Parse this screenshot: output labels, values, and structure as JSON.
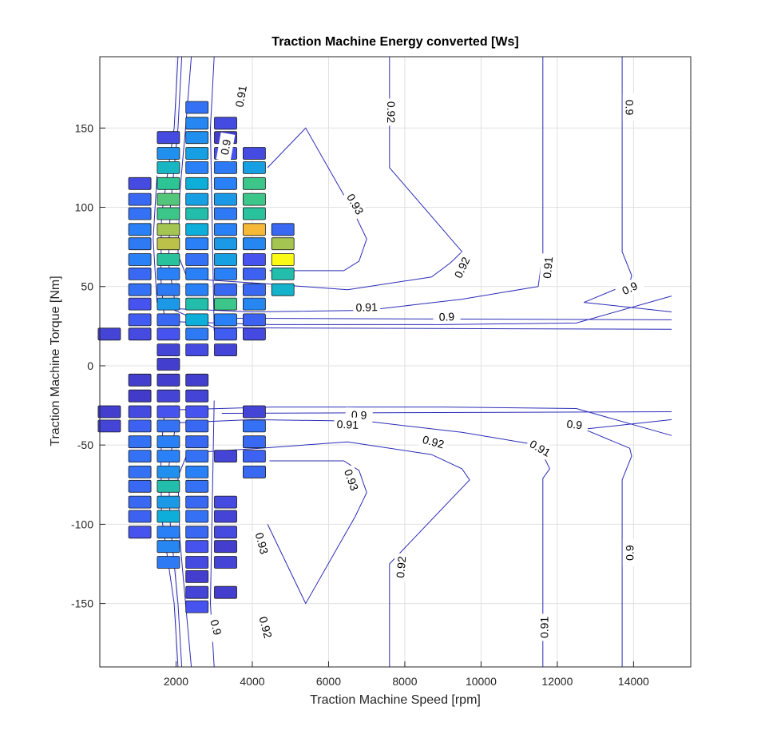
{
  "chart_data": {
    "type": "heatmap",
    "title": "Traction Machine Energy converted [Ws]",
    "xlabel": "Traction Machine Speed [rpm]",
    "ylabel": "Traction Machine Torque [Nm]",
    "xlim": [
      0,
      15500
    ],
    "ylim": [
      -190,
      195
    ],
    "xticks": [
      2000,
      4000,
      6000,
      8000,
      10000,
      12000,
      14000
    ],
    "yticks": [
      -150,
      -100,
      -50,
      0,
      50,
      100,
      150
    ],
    "grid": true,
    "colormap": "parula",
    "colors": {
      "contour": "#2b2bb8",
      "axis": "#262626",
      "grid": "#e1e1e1"
    },
    "cells": [
      {
        "x": 250,
        "y": 20,
        "c": 0.1
      },
      {
        "x": 250,
        "y": -29,
        "c": 0.08
      },
      {
        "x": 250,
        "y": -38,
        "c": 0.1
      },
      {
        "x": 1050,
        "y": 115,
        "c": 0.12
      },
      {
        "x": 1050,
        "y": 105,
        "c": 0.22
      },
      {
        "x": 1050,
        "y": 96,
        "c": 0.25
      },
      {
        "x": 1050,
        "y": 86,
        "c": 0.3
      },
      {
        "x": 1050,
        "y": 77,
        "c": 0.28
      },
      {
        "x": 1050,
        "y": 67,
        "c": 0.3
      },
      {
        "x": 1050,
        "y": 58,
        "c": 0.22
      },
      {
        "x": 1050,
        "y": 48,
        "c": 0.25
      },
      {
        "x": 1050,
        "y": 39,
        "c": 0.15
      },
      {
        "x": 1050,
        "y": 29,
        "c": 0.18
      },
      {
        "x": 1050,
        "y": 20,
        "c": 0.12
      },
      {
        "x": 1050,
        "y": -9,
        "c": 0.08
      },
      {
        "x": 1050,
        "y": -19,
        "c": 0.07
      },
      {
        "x": 1050,
        "y": -29,
        "c": 0.12
      },
      {
        "x": 1050,
        "y": -38,
        "c": 0.2
      },
      {
        "x": 1050,
        "y": -48,
        "c": 0.25
      },
      {
        "x": 1050,
        "y": -57,
        "c": 0.25
      },
      {
        "x": 1050,
        "y": -67,
        "c": 0.25
      },
      {
        "x": 1050,
        "y": -76,
        "c": 0.22
      },
      {
        "x": 1050,
        "y": -86,
        "c": 0.22
      },
      {
        "x": 1050,
        "y": -95,
        "c": 0.2
      },
      {
        "x": 1050,
        "y": -105,
        "c": 0.15
      },
      {
        "x": 1800,
        "y": 144,
        "c": 0.12
      },
      {
        "x": 1800,
        "y": 134,
        "c": 0.35
      },
      {
        "x": 1800,
        "y": 125,
        "c": 0.5
      },
      {
        "x": 1800,
        "y": 115,
        "c": 0.6
      },
      {
        "x": 1800,
        "y": 105,
        "c": 0.65
      },
      {
        "x": 1800,
        "y": 96,
        "c": 0.62
      },
      {
        "x": 1800,
        "y": 86,
        "c": 0.75
      },
      {
        "x": 1800,
        "y": 77,
        "c": 0.78
      },
      {
        "x": 1800,
        "y": 67,
        "c": 0.58
      },
      {
        "x": 1800,
        "y": 58,
        "c": 0.3
      },
      {
        "x": 1800,
        "y": 48,
        "c": 0.28
      },
      {
        "x": 1800,
        "y": 39,
        "c": 0.38
      },
      {
        "x": 1800,
        "y": 29,
        "c": 0.22
      },
      {
        "x": 1800,
        "y": 20,
        "c": 0.15
      },
      {
        "x": 1800,
        "y": 10,
        "c": 0.1
      },
      {
        "x": 1800,
        "y": 1,
        "c": 0.08
      },
      {
        "x": 1800,
        "y": -9,
        "c": 0.08
      },
      {
        "x": 1800,
        "y": -19,
        "c": 0.1
      },
      {
        "x": 1800,
        "y": -29,
        "c": 0.15
      },
      {
        "x": 1800,
        "y": -38,
        "c": 0.25
      },
      {
        "x": 1800,
        "y": -48,
        "c": 0.3
      },
      {
        "x": 1800,
        "y": -57,
        "c": 0.3
      },
      {
        "x": 1800,
        "y": -67,
        "c": 0.35
      },
      {
        "x": 1800,
        "y": -76,
        "c": 0.55
      },
      {
        "x": 1800,
        "y": -86,
        "c": 0.38
      },
      {
        "x": 1800,
        "y": -95,
        "c": 0.45
      },
      {
        "x": 1800,
        "y": -105,
        "c": 0.3
      },
      {
        "x": 1800,
        "y": -114,
        "c": 0.32
      },
      {
        "x": 1800,
        "y": -124,
        "c": 0.28
      },
      {
        "x": 2550,
        "y": 163,
        "c": 0.25
      },
      {
        "x": 2550,
        "y": 153,
        "c": 0.32
      },
      {
        "x": 2550,
        "y": 144,
        "c": 0.35
      },
      {
        "x": 2550,
        "y": 134,
        "c": 0.4
      },
      {
        "x": 2550,
        "y": 125,
        "c": 0.3
      },
      {
        "x": 2550,
        "y": 115,
        "c": 0.45
      },
      {
        "x": 2550,
        "y": 105,
        "c": 0.4
      },
      {
        "x": 2550,
        "y": 96,
        "c": 0.55
      },
      {
        "x": 2550,
        "y": 86,
        "c": 0.45
      },
      {
        "x": 2550,
        "y": 77,
        "c": 0.3
      },
      {
        "x": 2550,
        "y": 67,
        "c": 0.25
      },
      {
        "x": 2550,
        "y": 58,
        "c": 0.3
      },
      {
        "x": 2550,
        "y": 48,
        "c": 0.3
      },
      {
        "x": 2550,
        "y": 39,
        "c": 0.55
      },
      {
        "x": 2550,
        "y": 29,
        "c": 0.45
      },
      {
        "x": 2550,
        "y": 20,
        "c": 0.28
      },
      {
        "x": 2550,
        "y": 10,
        "c": 0.12
      },
      {
        "x": 2550,
        "y": -9,
        "c": 0.08
      },
      {
        "x": 2550,
        "y": -19,
        "c": 0.1
      },
      {
        "x": 2550,
        "y": -29,
        "c": 0.15
      },
      {
        "x": 2550,
        "y": -38,
        "c": 0.22
      },
      {
        "x": 2550,
        "y": -48,
        "c": 0.22
      },
      {
        "x": 2550,
        "y": -57,
        "c": 0.25
      },
      {
        "x": 2550,
        "y": -67,
        "c": 0.3
      },
      {
        "x": 2550,
        "y": -76,
        "c": 0.25
      },
      {
        "x": 2550,
        "y": -86,
        "c": 0.22
      },
      {
        "x": 2550,
        "y": -95,
        "c": 0.25
      },
      {
        "x": 2550,
        "y": -105,
        "c": 0.22
      },
      {
        "x": 2550,
        "y": -114,
        "c": 0.15
      },
      {
        "x": 2550,
        "y": -124,
        "c": 0.12
      },
      {
        "x": 2550,
        "y": -133,
        "c": 0.08
      },
      {
        "x": 2550,
        "y": -143,
        "c": 0.1
      },
      {
        "x": 2550,
        "y": -152,
        "c": 0.15
      },
      {
        "x": 3300,
        "y": 153,
        "c": 0.12
      },
      {
        "x": 3300,
        "y": 144,
        "c": 0.08
      },
      {
        "x": 3300,
        "y": 134,
        "c": 0.15
      },
      {
        "x": 3300,
        "y": 125,
        "c": 0.28
      },
      {
        "x": 3300,
        "y": 115,
        "c": 0.3
      },
      {
        "x": 3300,
        "y": 105,
        "c": 0.38
      },
      {
        "x": 3300,
        "y": 96,
        "c": 0.28
      },
      {
        "x": 3300,
        "y": 86,
        "c": 0.3
      },
      {
        "x": 3300,
        "y": 77,
        "c": 0.38
      },
      {
        "x": 3300,
        "y": 67,
        "c": 0.4
      },
      {
        "x": 3300,
        "y": 58,
        "c": 0.3
      },
      {
        "x": 3300,
        "y": 48,
        "c": 0.22
      },
      {
        "x": 3300,
        "y": 39,
        "c": 0.62
      },
      {
        "x": 3300,
        "y": 29,
        "c": 0.3
      },
      {
        "x": 3300,
        "y": 20,
        "c": 0.18
      },
      {
        "x": 3300,
        "y": 10,
        "c": 0.1
      },
      {
        "x": 3300,
        "y": -57,
        "c": 0.1
      },
      {
        "x": 3300,
        "y": -86,
        "c": 0.12
      },
      {
        "x": 3300,
        "y": -95,
        "c": 0.1
      },
      {
        "x": 3300,
        "y": -105,
        "c": 0.12
      },
      {
        "x": 3300,
        "y": -114,
        "c": 0.08
      },
      {
        "x": 3300,
        "y": -124,
        "c": 0.1
      },
      {
        "x": 3300,
        "y": -143,
        "c": 0.08
      },
      {
        "x": 4050,
        "y": 134,
        "c": 0.12
      },
      {
        "x": 4050,
        "y": 125,
        "c": 0.4
      },
      {
        "x": 4050,
        "y": 115,
        "c": 0.62
      },
      {
        "x": 4050,
        "y": 105,
        "c": 0.62
      },
      {
        "x": 4050,
        "y": 96,
        "c": 0.58
      },
      {
        "x": 4050,
        "y": 86,
        "c": 0.85
      },
      {
        "x": 4050,
        "y": 77,
        "c": 0.32
      },
      {
        "x": 4050,
        "y": 67,
        "c": 0.15
      },
      {
        "x": 4050,
        "y": 58,
        "c": 0.2
      },
      {
        "x": 4050,
        "y": 48,
        "c": 0.22
      },
      {
        "x": 4050,
        "y": 39,
        "c": 0.32
      },
      {
        "x": 4050,
        "y": 29,
        "c": 0.2
      },
      {
        "x": 4050,
        "y": 20,
        "c": 0.12
      },
      {
        "x": 4050,
        "y": -29,
        "c": 0.1
      },
      {
        "x": 4050,
        "y": -38,
        "c": 0.25
      },
      {
        "x": 4050,
        "y": -48,
        "c": 0.22
      },
      {
        "x": 4050,
        "y": -57,
        "c": 0.2
      },
      {
        "x": 4050,
        "y": -67,
        "c": 0.22
      },
      {
        "x": 4050,
        "y": -67,
        "c": 0.22
      },
      {
        "x": 4800,
        "y": 86,
        "c": 0.22
      },
      {
        "x": 4800,
        "y": 77,
        "c": 0.75
      },
      {
        "x": 4800,
        "y": 67,
        "c": 1.0
      },
      {
        "x": 4800,
        "y": 58,
        "c": 0.55
      },
      {
        "x": 4800,
        "y": 48,
        "c": 0.48
      }
    ],
    "contours": [
      {
        "level": "0.9",
        "points": [
          [
            2050,
            195
          ],
          [
            1950,
            150
          ],
          [
            1620,
            95
          ],
          [
            1600,
            55
          ],
          [
            1700,
            28
          ],
          [
            4500,
            26
          ],
          [
            9000,
            26
          ],
          [
            12500,
            27
          ],
          [
            15000,
            44
          ]
        ]
      },
      {
        "level": "0.91",
        "points": [
          [
            2150,
            195
          ],
          [
            2050,
            150
          ],
          [
            1850,
            100
          ],
          [
            1800,
            65
          ],
          [
            2000,
            36
          ],
          [
            4000,
            34
          ],
          [
            7000,
            35
          ],
          [
            9500,
            42
          ],
          [
            11500,
            50
          ],
          [
            11620,
            71
          ],
          [
            11620,
            195
          ]
        ]
      },
      {
        "level": "0.92",
        "points": [
          [
            2400,
            195
          ],
          [
            2250,
            150
          ],
          [
            2100,
            110
          ],
          [
            2050,
            70
          ],
          [
            2300,
            55
          ],
          [
            4200,
            52
          ],
          [
            6500,
            48
          ],
          [
            8700,
            56
          ],
          [
            9200,
            65
          ],
          [
            9500,
            72
          ],
          [
            7600,
            125
          ],
          [
            7600,
            195
          ]
        ]
      },
      {
        "level": "0.93",
        "points": [
          [
            4400,
            125
          ],
          [
            5400,
            150
          ],
          [
            6700,
            95
          ],
          [
            7000,
            80
          ],
          [
            6800,
            66
          ],
          [
            6400,
            60
          ],
          [
            4450,
            60
          ]
        ]
      },
      {
        "level": "0.9",
        "points": [
          [
            13700,
            195
          ],
          [
            13700,
            72
          ],
          [
            13950,
            57
          ],
          [
            13900,
            52
          ],
          [
            12700,
            40
          ],
          [
            15000,
            34
          ]
        ]
      },
      {
        "level": "0.9",
        "points": [
          [
            1500,
            120
          ],
          [
            1400,
            80
          ],
          [
            1500,
            40
          ],
          [
            3000,
            24
          ],
          [
            15000,
            23
          ]
        ]
      },
      {
        "level": "0.9",
        "points": [
          [
            3200,
            30
          ],
          [
            15000,
            29
          ]
        ]
      },
      {
        "level": "0.9",
        "points": [
          [
            3000,
            195
          ],
          [
            2900,
            150
          ],
          [
            3000,
            22
          ]
        ]
      },
      {
        "level": "0.9",
        "points": [
          [
            2050,
            -190
          ],
          [
            1950,
            -150
          ],
          [
            1620,
            -95
          ],
          [
            1600,
            -55
          ],
          [
            1700,
            -28
          ],
          [
            4500,
            -26
          ],
          [
            9000,
            -26
          ],
          [
            12500,
            -27
          ],
          [
            15000,
            -44
          ]
        ]
      },
      {
        "level": "0.91",
        "points": [
          [
            2150,
            -190
          ],
          [
            2050,
            -150
          ],
          [
            1850,
            -100
          ],
          [
            1800,
            -65
          ],
          [
            2000,
            -36
          ],
          [
            4000,
            -34
          ],
          [
            7000,
            -35
          ],
          [
            9500,
            -42
          ],
          [
            11500,
            -50
          ],
          [
            11800,
            -65
          ],
          [
            11620,
            -71
          ],
          [
            11620,
            -190
          ]
        ]
      },
      {
        "level": "0.92",
        "points": [
          [
            2400,
            -190
          ],
          [
            2250,
            -150
          ],
          [
            2100,
            -110
          ],
          [
            2050,
            -70
          ],
          [
            2300,
            -55
          ],
          [
            4200,
            -52
          ],
          [
            6500,
            -48
          ],
          [
            8700,
            -56
          ],
          [
            9500,
            -65
          ],
          [
            9700,
            -72
          ],
          [
            7600,
            -125
          ],
          [
            7600,
            -190
          ]
        ]
      },
      {
        "level": "0.93",
        "points": [
          [
            4400,
            -100
          ],
          [
            5400,
            -150
          ],
          [
            6700,
            -95
          ],
          [
            7000,
            -80
          ],
          [
            6800,
            -66
          ],
          [
            6400,
            -60
          ],
          [
            4450,
            -60
          ]
        ]
      },
      {
        "level": "0.9",
        "points": [
          [
            13700,
            -190
          ],
          [
            13700,
            -72
          ],
          [
            13950,
            -57
          ],
          [
            13900,
            -52
          ],
          [
            12700,
            -40
          ],
          [
            15000,
            -34
          ]
        ]
      },
      {
        "level": "0.9",
        "points": [
          [
            3200,
            -30
          ],
          [
            15000,
            -29
          ]
        ]
      },
      {
        "level": "0.9",
        "points": [
          [
            3000,
            -190
          ],
          [
            2900,
            -150
          ],
          [
            3000,
            -22
          ]
        ]
      }
    ],
    "contour_labels": [
      {
        "text": "0.91",
        "x": 3700,
        "y": 170,
        "rot": -80
      },
      {
        "text": "0.9",
        "x": 3300,
        "y": 138,
        "rot": -80
      },
      {
        "text": "0.92",
        "x": 7650,
        "y": 160,
        "rot": 90
      },
      {
        "text": "0.9",
        "x": 13900,
        "y": 163,
        "rot": 90
      },
      {
        "text": "0.93",
        "x": 6700,
        "y": 102,
        "rot": 60
      },
      {
        "text": "0.92",
        "x": 9500,
        "y": 62,
        "rot": -65
      },
      {
        "text": "0.91",
        "x": 11750,
        "y": 62,
        "rot": -85
      },
      {
        "text": "0.9",
        "x": 13900,
        "y": 49,
        "rot": -25
      },
      {
        "text": "0.91",
        "x": 7000,
        "y": 37,
        "rot": -2
      },
      {
        "text": "0.9",
        "x": 9100,
        "y": 31,
        "rot": -2
      },
      {
        "text": "0.9",
        "x": 6800,
        "y": -31,
        "rot": 2
      },
      {
        "text": "0.91",
        "x": 6500,
        "y": -37,
        "rot": 2
      },
      {
        "text": "0.92",
        "x": 8750,
        "y": -48,
        "rot": 15
      },
      {
        "text": "0.9",
        "x": 12450,
        "y": -37,
        "rot": 5
      },
      {
        "text": "0.91",
        "x": 11550,
        "y": -52,
        "rot": 30
      },
      {
        "text": "0.93",
        "x": 6600,
        "y": -72,
        "rot": 70
      },
      {
        "text": "0.92",
        "x": 7900,
        "y": -127,
        "rot": -85
      },
      {
        "text": "0.93",
        "x": 4250,
        "y": -112,
        "rot": 75
      },
      {
        "text": "0.9",
        "x": 13900,
        "y": -118,
        "rot": -90
      },
      {
        "text": "0.92",
        "x": 4350,
        "y": -165,
        "rot": 75
      },
      {
        "text": "0.9",
        "x": 3050,
        "y": -165,
        "rot": 75
      },
      {
        "text": "0.91",
        "x": 11660,
        "y": -165,
        "rot": -90
      }
    ]
  }
}
